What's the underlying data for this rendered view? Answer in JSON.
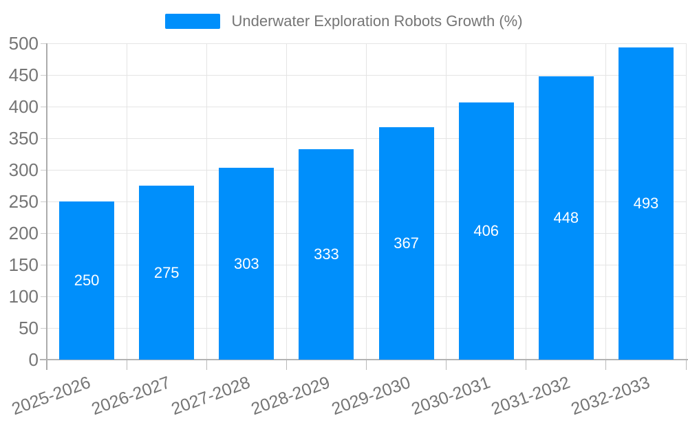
{
  "chart_data": {
    "type": "bar",
    "title": "Underwater Exploration Robots Growth (%)",
    "categories": [
      "2025-2026",
      "2026-2027",
      "2027-2028",
      "2028-2029",
      "2029-2030",
      "2030-2031",
      "2031-2032",
      "2032-2033"
    ],
    "values": [
      250,
      275,
      303,
      333,
      367,
      406,
      448,
      493
    ],
    "xlabel": "",
    "ylabel": "",
    "ylim": [
      0,
      500
    ],
    "ytick_step": 50,
    "ytick_labels": [
      "0",
      "50",
      "100",
      "150",
      "200",
      "250",
      "300",
      "350",
      "400",
      "450",
      "500"
    ],
    "grid": true,
    "legend": {
      "position": "top",
      "label": "Underwater Exploration Robots Growth (%)"
    },
    "colors": {
      "bar": "#008FFB",
      "value_label": "#FFFFFF",
      "gridline": "#E4E4E4",
      "axis_line": "#ABABAB",
      "tick_label": "#757575",
      "legend_text": "#757575"
    }
  }
}
